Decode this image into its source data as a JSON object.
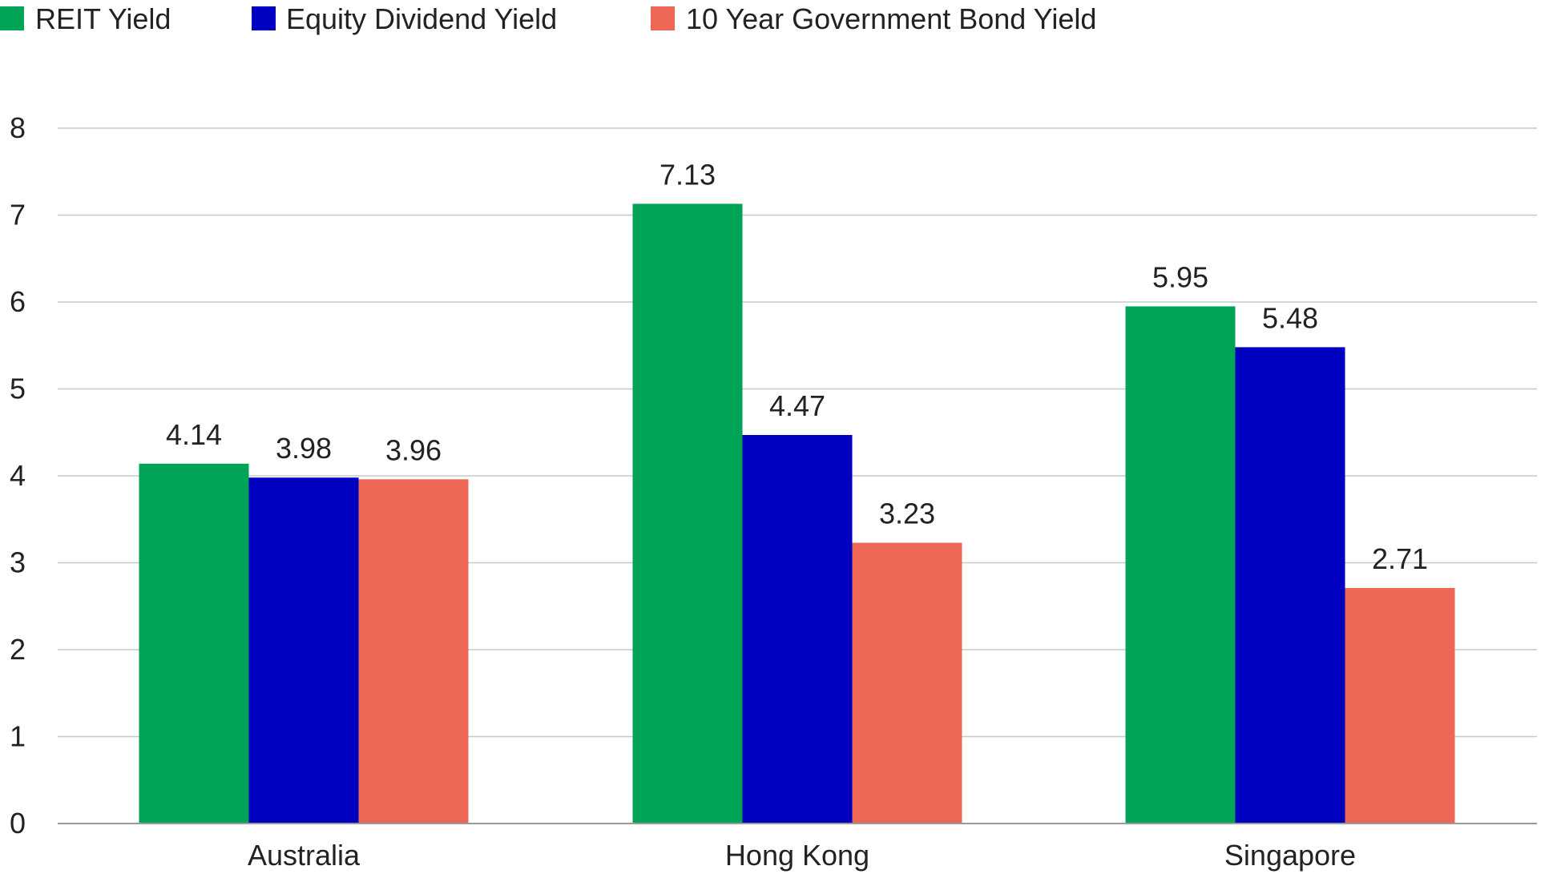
{
  "chart_data": {
    "type": "bar",
    "categories": [
      "Australia",
      "Hong Kong",
      "Singapore"
    ],
    "series": [
      {
        "name": "REIT Yield",
        "values": [
          4.14,
          7.13,
          5.95
        ],
        "color": "#00A456"
      },
      {
        "name": "Equity Dividend Yield",
        "values": [
          3.98,
          4.47,
          5.48
        ],
        "color": "#0000C0"
      },
      {
        "name": "10 Year Government Bond Yield",
        "values": [
          3.96,
          3.23,
          2.71
        ],
        "color": "#EE6655"
      }
    ],
    "value_labels": [
      [
        "4.14",
        "7.13",
        "5.95"
      ],
      [
        "3.98",
        "4.47",
        "5.48"
      ],
      [
        "3.96",
        "3.23",
        "2.71"
      ]
    ],
    "yticks": [
      "0",
      "1",
      "2",
      "3",
      "4",
      "5",
      "6",
      "7",
      "8"
    ],
    "ylim": [
      0,
      8
    ],
    "title": "",
    "xlabel": "",
    "ylabel": "",
    "grid": true,
    "legend_position": "top-left"
  }
}
